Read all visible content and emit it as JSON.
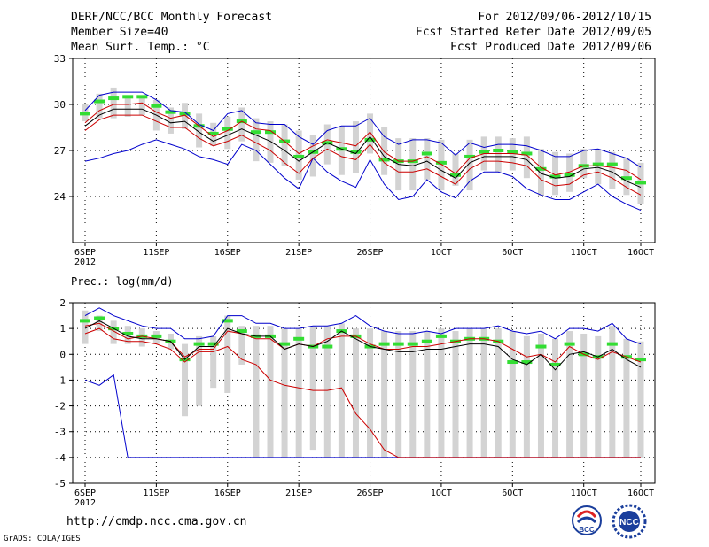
{
  "header": {
    "title": "DERF/NCC/BCC Monthly Forecast",
    "member_size": "Member Size=40",
    "variable": "Mean Surf. Temp.: °C",
    "period": "For 2012/09/06-2012/10/15",
    "refer_date": "Fcst Started Refer Date 2012/09/05",
    "produced_date": "Fcst Produced Date 2012/09/06"
  },
  "footer": {
    "url": "http://cmdp.ncc.cma.gov.cn",
    "credit": "GrADS: COLA/IGES",
    "logo_bcc": "BCC",
    "logo_ncc": "NCC"
  },
  "colors": {
    "max_min": "#0000cc",
    "spread": "#cc0000",
    "mean": "#000000",
    "median": "#33dd33",
    "box": "#d3d3d3"
  },
  "chart_data": [
    {
      "type": "line",
      "name": "temperature",
      "title": "Mean Surf. Temp.: °C",
      "xlabel": "",
      "ylabel": "°C",
      "ylim": [
        21,
        33
      ],
      "yticks": [
        24,
        27,
        30,
        33
      ],
      "grid": true,
      "x_day_range": [
        0,
        39
      ],
      "xticks": [
        {
          "day": 0,
          "label": "6SEP",
          "sub": "2012"
        },
        {
          "day": 5,
          "label": "11SEP"
        },
        {
          "day": 10,
          "label": "16SEP"
        },
        {
          "day": 15,
          "label": "21SEP"
        },
        {
          "day": 20,
          "label": "26SEP"
        },
        {
          "day": 25,
          "label": "1OCT"
        },
        {
          "day": 30,
          "label": "6OCT"
        },
        {
          "day": 35,
          "label": "11OCT"
        },
        {
          "day": 39,
          "label": "16OCT"
        }
      ],
      "series": [
        {
          "name": "max",
          "values": [
            29.6,
            30.6,
            30.8,
            30.8,
            30.8,
            30.3,
            29.6,
            29.5,
            28.7,
            28.3,
            29.4,
            29.6,
            28.8,
            28.7,
            28.7,
            27.9,
            27.4,
            28.3,
            28.6,
            28.6,
            29.1,
            27.9,
            27.4,
            27.7,
            27.7,
            27.5,
            26.7,
            27.5,
            27.2,
            27.4,
            27.4,
            27.3,
            27.0,
            26.6,
            26.6,
            27.0,
            27.1,
            26.8,
            26.5,
            25.9
          ]
        },
        {
          "name": "upper",
          "values": [
            28.8,
            29.6,
            30.0,
            30.0,
            30.1,
            29.5,
            29.1,
            29.3,
            28.6,
            27.9,
            28.3,
            28.9,
            28.4,
            28.3,
            27.6,
            26.8,
            27.3,
            27.7,
            27.5,
            27.3,
            28.2,
            26.9,
            26.3,
            26.3,
            26.6,
            26.1,
            25.5,
            26.5,
            26.8,
            26.8,
            26.8,
            26.7,
            25.9,
            25.4,
            25.6,
            26.0,
            26.0,
            25.9,
            25.7,
            25.1
          ]
        },
        {
          "name": "mean",
          "values": [
            28.6,
            29.3,
            29.7,
            29.7,
            29.7,
            29.3,
            28.8,
            28.9,
            28.2,
            27.6,
            28.0,
            28.4,
            28.0,
            27.6,
            27.0,
            26.3,
            26.9,
            27.5,
            27.1,
            26.8,
            27.9,
            26.6,
            26.1,
            26.0,
            26.3,
            25.7,
            25.2,
            26.2,
            26.6,
            26.6,
            26.6,
            26.4,
            25.5,
            25.2,
            25.3,
            25.8,
            25.9,
            25.6,
            25.0,
            24.6
          ]
        },
        {
          "name": "lower",
          "values": [
            28.3,
            29.0,
            29.3,
            29.3,
            29.3,
            28.9,
            28.5,
            28.5,
            27.8,
            27.3,
            27.6,
            28.0,
            27.5,
            27.0,
            26.2,
            25.5,
            26.5,
            27.1,
            26.6,
            26.4,
            27.4,
            26.2,
            25.6,
            25.6,
            25.8,
            25.3,
            24.8,
            25.8,
            26.3,
            26.3,
            26.2,
            26.0,
            25.1,
            24.7,
            24.8,
            25.4,
            25.6,
            25.2,
            24.6,
            24.1
          ]
        },
        {
          "name": "min",
          "values": [
            26.3,
            26.5,
            26.8,
            27.0,
            27.4,
            27.7,
            27.4,
            27.1,
            26.6,
            26.4,
            26.1,
            27.4,
            27.0,
            26.1,
            25.2,
            24.5,
            26.5,
            25.6,
            25.0,
            24.6,
            26.4,
            24.8,
            23.8,
            24.0,
            25.1,
            24.3,
            23.9,
            25.0,
            25.6,
            25.6,
            25.3,
            24.5,
            24.1,
            23.8,
            23.8,
            24.3,
            24.8,
            24.0,
            23.5,
            23.1
          ]
        },
        {
          "name": "median",
          "values": [
            29.4,
            30.2,
            30.4,
            30.5,
            30.5,
            29.9,
            29.5,
            29.4,
            28.6,
            28.1,
            28.4,
            28.9,
            28.2,
            28.2,
            27.6,
            26.6,
            26.9,
            27.5,
            27.1,
            26.9,
            27.7,
            26.4,
            26.3,
            26.3,
            26.8,
            26.2,
            25.4,
            26.6,
            26.9,
            27.0,
            26.9,
            26.8,
            25.8,
            25.3,
            25.4,
            26.0,
            26.1,
            26.1,
            25.2,
            24.9
          ]
        },
        {
          "name": "box_high",
          "values": [
            30.0,
            30.7,
            31.1,
            30.6,
            30.6,
            30.3,
            29.8,
            30.1,
            29.4,
            28.8,
            29.2,
            29.8,
            29.1,
            28.9,
            28.7,
            28.3,
            28.0,
            28.7,
            28.6,
            28.9,
            29.4,
            28.5,
            27.8,
            27.8,
            27.8,
            27.7,
            26.8,
            27.7,
            27.9,
            27.9,
            27.8,
            27.9,
            27.1,
            26.9,
            26.8,
            27.1,
            27.1,
            26.9,
            26.5,
            26.2
          ]
        },
        {
          "name": "box_low",
          "values": [
            28.9,
            29.1,
            29.1,
            29.2,
            29.3,
            28.3,
            28.1,
            28.4,
            27.2,
            27.3,
            27.1,
            27.6,
            26.3,
            26.2,
            26.0,
            25.1,
            25.3,
            26.1,
            25.4,
            25.5,
            26.8,
            25.4,
            24.4,
            24.4,
            25.1,
            24.4,
            24.7,
            24.4,
            25.7,
            25.6,
            25.7,
            25.2,
            24.0,
            24.1,
            24.3,
            25.2,
            24.8,
            24.5,
            24.1,
            23.5
          ]
        }
      ]
    },
    {
      "type": "line",
      "name": "precipitation",
      "title": "Prec.: log(mm/d)",
      "xlabel": "",
      "ylabel": "log(mm/d)",
      "ylim": [
        -5,
        2
      ],
      "yticks": [
        -5,
        -4,
        -3,
        -2,
        -1,
        0,
        1,
        2
      ],
      "grid": true,
      "x_day_range": [
        0,
        39
      ],
      "xticks": [
        {
          "day": 0,
          "label": "6SEP",
          "sub": "2012"
        },
        {
          "day": 5,
          "label": "11SEP"
        },
        {
          "day": 10,
          "label": "16SEP"
        },
        {
          "day": 15,
          "label": "21SEP"
        },
        {
          "day": 20,
          "label": "26SEP"
        },
        {
          "day": 25,
          "label": "1OCT"
        },
        {
          "day": 30,
          "label": "6OCT"
        },
        {
          "day": 35,
          "label": "11OCT"
        },
        {
          "day": 39,
          "label": "16OCT"
        }
      ],
      "series": [
        {
          "name": "max",
          "values": [
            1.5,
            1.8,
            1.5,
            1.3,
            1.1,
            1.0,
            1.0,
            0.6,
            0.6,
            0.7,
            1.5,
            1.5,
            1.2,
            1.2,
            1.0,
            1.0,
            1.1,
            1.1,
            1.2,
            1.5,
            1.1,
            0.9,
            0.8,
            0.8,
            0.9,
            0.8,
            1.0,
            1.0,
            1.0,
            1.1,
            0.9,
            0.8,
            0.9,
            0.6,
            1.0,
            1.0,
            0.9,
            1.2,
            0.6,
            0.4
          ]
        },
        {
          "name": "upper",
          "values": [
            1.1,
            1.2,
            0.9,
            0.6,
            0.7,
            0.6,
            0.5,
            -0.1,
            0.2,
            0.2,
            0.9,
            0.8,
            0.6,
            0.6,
            0.2,
            0.4,
            0.3,
            0.6,
            0.7,
            0.7,
            0.4,
            0.2,
            0.2,
            0.3,
            0.3,
            0.4,
            0.5,
            0.6,
            0.6,
            0.5,
            0.2,
            -0.1,
            0.0,
            -0.3,
            0.3,
            0.0,
            -0.2,
            0.1,
            -0.1,
            -0.3
          ]
        },
        {
          "name": "mean",
          "values": [
            1.0,
            1.3,
            1.0,
            0.7,
            0.6,
            0.6,
            0.5,
            -0.2,
            0.3,
            0.3,
            1.0,
            0.8,
            0.7,
            0.7,
            0.2,
            0.4,
            0.3,
            0.5,
            0.9,
            0.6,
            0.3,
            0.2,
            0.1,
            0.1,
            0.2,
            0.2,
            0.3,
            0.4,
            0.4,
            0.3,
            -0.2,
            -0.4,
            0.0,
            -0.6,
            0.0,
            0.1,
            -0.1,
            0.2,
            -0.2,
            -0.5
          ]
        },
        {
          "name": "lower",
          "values": [
            0.8,
            1.0,
            0.6,
            0.5,
            0.5,
            0.4,
            0.2,
            -0.3,
            0.1,
            0.1,
            0.3,
            -0.2,
            -0.4,
            -1.0,
            -1.2,
            -1.3,
            -1.4,
            -1.4,
            -1.3,
            -2.3,
            -2.9,
            -3.7,
            -4.0,
            -4.0,
            -4.0,
            -4.0,
            -4.0,
            -4.0,
            -4.0,
            -4.0,
            -4.0,
            -4.0,
            -4.0,
            -4.0,
            -4.0,
            -4.0,
            -4.0,
            -4.0,
            -4.0,
            -4.0
          ]
        },
        {
          "name": "min",
          "values": [
            -1.0,
            -1.2,
            -0.8,
            -4.0,
            -4.0,
            -4.0,
            -4.0,
            -4.0,
            -4.0,
            -4.0,
            -4.0,
            -4.0,
            -4.0,
            -4.0,
            -4.0,
            -4.0,
            -4.0,
            -4.0,
            -4.0,
            -4.0,
            -4.0,
            -4.0,
            -4.0,
            -4.0,
            -4.0,
            -4.0,
            -4.0,
            -4.0,
            -4.0,
            -4.0,
            -4.0,
            -4.0,
            -4.0,
            -4.0,
            -4.0,
            -4.0,
            -4.0,
            -4.0,
            -4.0,
            -4.0
          ]
        },
        {
          "name": "median",
          "values": [
            1.3,
            1.4,
            1.0,
            0.8,
            0.7,
            0.7,
            0.5,
            -0.2,
            0.4,
            0.4,
            1.3,
            0.9,
            0.7,
            0.7,
            0.4,
            0.6,
            0.3,
            0.3,
            0.9,
            0.7,
            0.3,
            0.4,
            0.4,
            0.4,
            0.5,
            0.7,
            0.5,
            0.6,
            0.6,
            0.5,
            -0.3,
            -0.3,
            0.3,
            -0.4,
            0.4,
            0.0,
            -0.1,
            0.4,
            -0.1,
            -0.2
          ]
        },
        {
          "name": "box_high",
          "values": [
            1.7,
            1.5,
            1.3,
            1.1,
            1.0,
            0.9,
            0.8,
            0.4,
            0.7,
            0.7,
            1.5,
            1.1,
            1.1,
            1.1,
            1.0,
            1.0,
            1.1,
            1.1,
            1.2,
            1.0,
            1.0,
            0.9,
            0.9,
            0.9,
            0.9,
            1.0,
            0.9,
            1.0,
            1.0,
            1.0,
            0.9,
            0.7,
            0.8,
            0.6,
            0.9,
            0.8,
            0.7,
            1.1,
            0.6,
            0.5
          ]
        },
        {
          "name": "box_low",
          "values": [
            0.4,
            0.9,
            0.4,
            0.4,
            0.3,
            0.4,
            0.2,
            -2.4,
            -2.0,
            -1.3,
            -1.5,
            -0.4,
            -4.0,
            -4.0,
            -4.0,
            -4.0,
            -3.7,
            -4.0,
            -4.0,
            -4.0,
            -4.0,
            -4.0,
            -4.0,
            -4.0,
            -4.0,
            -4.0,
            -4.0,
            -4.0,
            -4.0,
            -4.0,
            -4.0,
            -4.0,
            -4.0,
            -4.0,
            -4.0,
            -4.0,
            -4.0,
            -4.0,
            -4.0,
            -4.0
          ]
        }
      ]
    }
  ]
}
